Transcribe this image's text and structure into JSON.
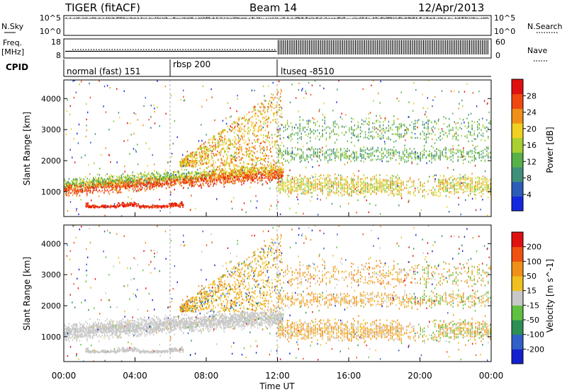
{
  "header": {
    "radar": "TIGER (fitACF)",
    "beam": "Beam 14",
    "date": "12/Apr/2013"
  },
  "top_panels": {
    "nsky": {
      "label": "N.Sky",
      "ticks": [
        "10^5",
        "10^0"
      ],
      "right_label": "N.Search",
      "right_ticks": [
        "10^5",
        "10^0"
      ]
    },
    "freq": {
      "label_line1": "Freq.",
      "label_line2": "[MHz]",
      "ticks": [
        "18",
        "8"
      ],
      "right_label": "Nave",
      "right_ticks": [
        "60",
        "0"
      ]
    },
    "cpid": {
      "label": "CPID",
      "segments": [
        {
          "label": "normal (fast) 151",
          "start_h": 0,
          "end_h": 6
        },
        {
          "label": "rbsp 200",
          "start_h": 6,
          "end_h": 12
        },
        {
          "label": "ltuseq -8510",
          "start_h": 12,
          "end_h": 24
        }
      ]
    }
  },
  "chart_data": [
    {
      "type": "heatmap",
      "name": "power",
      "ylabel": "Slant Range [km]",
      "yticks": [
        1000,
        2000,
        3000,
        4000
      ],
      "ylim": [
        200,
        4600
      ],
      "xlim": [
        0,
        24
      ],
      "colorbar": {
        "label": "Power [dB]",
        "ticks": [
          "4",
          "8",
          "12",
          "16",
          "20",
          "24",
          "28"
        ],
        "range": [
          0,
          30
        ],
        "colors": [
          "#1428e0",
          "#2d5db8",
          "#3f8f7a",
          "#58b048",
          "#a8d030",
          "#f0d020",
          "#f09018",
          "#f04810",
          "#e01010"
        ]
      }
    },
    {
      "type": "heatmap",
      "name": "velocity",
      "ylabel": "Slant Range [km]",
      "yticks": [
        1000,
        2000,
        3000,
        4000
      ],
      "ylim": [
        200,
        4600
      ],
      "xlim": [
        0,
        24
      ],
      "colorbar": {
        "label": "Velocity [m s^-1]",
        "ticks": [
          "200",
          "100",
          "50",
          "15",
          "-15",
          "-50",
          "-100",
          "-200"
        ],
        "colors": [
          "#1420d0",
          "#3060c8",
          "#2e8f55",
          "#60c040",
          "#c8c8c8",
          "#f0c020",
          "#f09018",
          "#f05010",
          "#e01010"
        ]
      }
    }
  ],
  "xaxis": {
    "label": "Time UT",
    "ticks": [
      "00:00",
      "04:00",
      "08:00",
      "12:00",
      "16:00",
      "20:00",
      "00:00"
    ]
  }
}
